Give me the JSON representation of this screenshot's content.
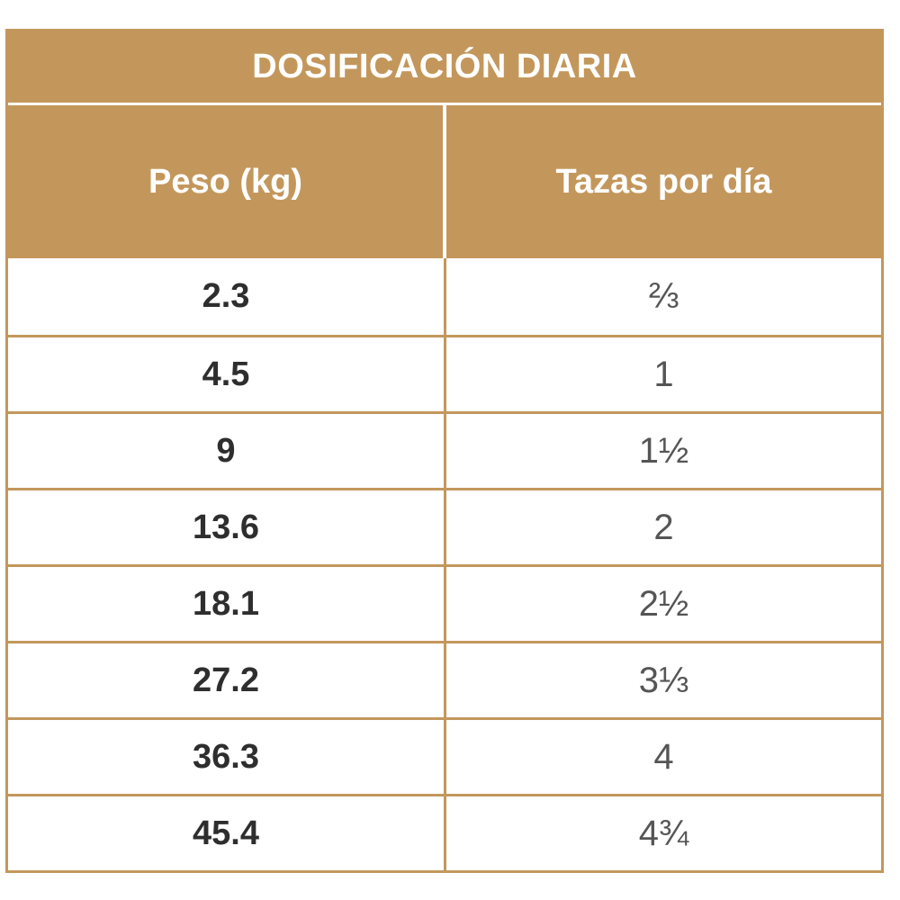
{
  "table": {
    "title": "DOSIFICACIÓN DIARIA",
    "headers": {
      "weight": "Peso (kg)",
      "cups": "Tazas por día"
    },
    "rows": [
      {
        "weight": "2.3",
        "cups": "⅔"
      },
      {
        "weight": "4.5",
        "cups": "1"
      },
      {
        "weight": "9",
        "cups": "1½"
      },
      {
        "weight": "13.6",
        "cups": "2"
      },
      {
        "weight": "18.1",
        "cups": "2½"
      },
      {
        "weight": "27.2",
        "cups": "3⅓"
      },
      {
        "weight": "36.3",
        "cups": "4"
      },
      {
        "weight": "45.4",
        "cups": "4¾"
      }
    ]
  },
  "colors": {
    "accent": "#c3975c",
    "weight_text": "#2e2e2e",
    "cups_text": "#555555",
    "background": "#ffffff"
  }
}
